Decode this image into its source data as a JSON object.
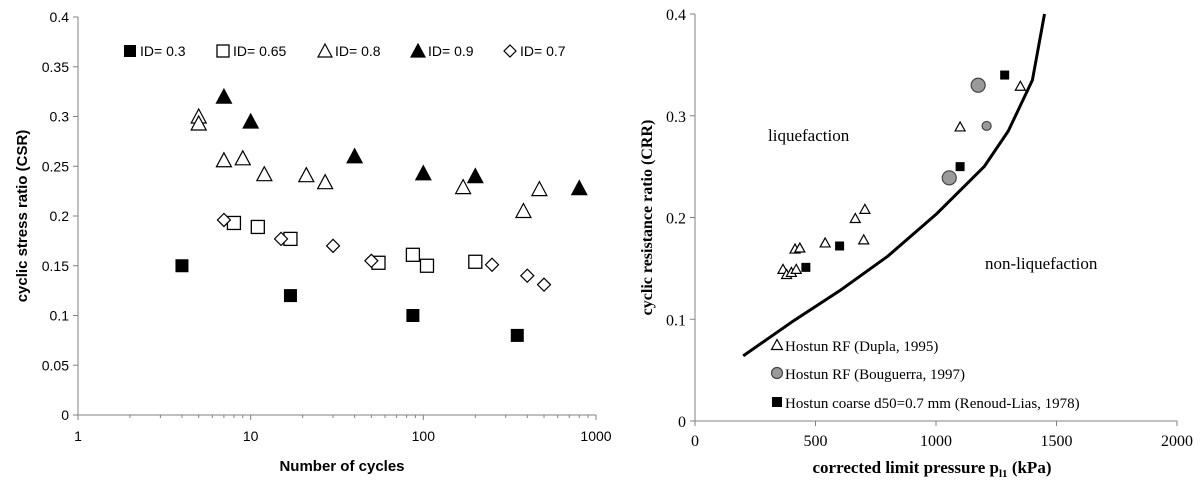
{
  "chart_data": [
    {
      "type": "scatter",
      "xlabel": "Number of cycles",
      "ylabel": "cyclic stress ratio (CSR)",
      "xscale": "log",
      "xlim": [
        1,
        1000
      ],
      "ylim": [
        0,
        0.4
      ],
      "grid": false,
      "legend": "top",
      "x_ticks": [
        "1",
        "10",
        "100",
        "1000"
      ],
      "y_ticks": [
        "0",
        "0.05",
        "0.1",
        "0.15",
        "0.2",
        "0.25",
        "0.3",
        "0.35",
        "0.4"
      ],
      "series": [
        {
          "name": "ID= 0.3",
          "marker": "filled-square",
          "x": [
            4,
            17,
            87,
            350
          ],
          "y": [
            0.15,
            0.12,
            0.1,
            0.08
          ]
        },
        {
          "name": "ID= 0.65",
          "marker": "open-square",
          "x": [
            8,
            11,
            17,
            55,
            87,
            105,
            200
          ],
          "y": [
            0.193,
            0.189,
            0.177,
            0.153,
            0.161,
            0.15,
            0.154
          ]
        },
        {
          "name": "ID= 0.8",
          "marker": "open-triangle",
          "x": [
            5,
            5,
            7,
            9,
            12,
            21,
            27,
            170,
            380,
            470
          ],
          "y": [
            0.3,
            0.293,
            0.256,
            0.258,
            0.242,
            0.241,
            0.234,
            0.229,
            0.205,
            0.227
          ]
        },
        {
          "name": "ID= 0.9",
          "marker": "filled-triangle",
          "x": [
            7,
            10,
            40,
            100,
            200,
            800
          ],
          "y": [
            0.32,
            0.295,
            0.26,
            0.243,
            0.24,
            0.228
          ]
        },
        {
          "name": "ID= 0.7",
          "marker": "open-diamond",
          "x": [
            7,
            15,
            30,
            50,
            250,
            400,
            500
          ],
          "y": [
            0.196,
            0.177,
            0.17,
            0.155,
            0.151,
            0.14,
            0.131
          ]
        }
      ]
    },
    {
      "type": "scatter",
      "xlabel": "corrected limit pressure p",
      "xlabel_sub": "l1",
      "xlabel_unit": " (kPa)",
      "ylabel": "cyclic resistance ratio (CRR)",
      "xlim": [
        0,
        2000
      ],
      "ylim": [
        0,
        0.4
      ],
      "grid": false,
      "legend": "bottom-left",
      "x_ticks": [
        "0",
        "500",
        "1000",
        "1500",
        "2000"
      ],
      "y_ticks": [
        "0",
        "0.1",
        "0.2",
        "0.3",
        "0.4"
      ],
      "annotations": [
        "liquefaction",
        "non-liquefaction"
      ],
      "curve": {
        "x": [
          200,
          400,
          600,
          800,
          1000,
          1200,
          1300,
          1400,
          1450
        ],
        "y": [
          0.064,
          0.097,
          0.128,
          0.162,
          0.203,
          0.25,
          0.285,
          0.335,
          0.4
        ]
      },
      "series": [
        {
          "name": "Hostun RF (Dupla, 1995)",
          "marker": "open-triangle",
          "x": [
            365,
            380,
            400,
            415,
            420,
            435,
            540,
            665,
            700,
            705,
            1100,
            1350
          ],
          "y": [
            0.149,
            0.144,
            0.146,
            0.169,
            0.149,
            0.17,
            0.175,
            0.199,
            0.178,
            0.208,
            0.289,
            0.329
          ]
        },
        {
          "name": "Hostun RF (Bouguerra, 1997)",
          "marker": "filled-circle-gray",
          "x": [
            1055,
            1175,
            1210
          ],
          "y": [
            0.239,
            0.33,
            0.29
          ]
        },
        {
          "name": "Hostun coarse d50=0.7 mm (Renoud-Lias, 1978)",
          "marker": "filled-square",
          "x": [
            460,
            600,
            1100,
            1285
          ],
          "y": [
            0.151,
            0.172,
            0.25,
            0.34
          ]
        }
      ]
    }
  ]
}
